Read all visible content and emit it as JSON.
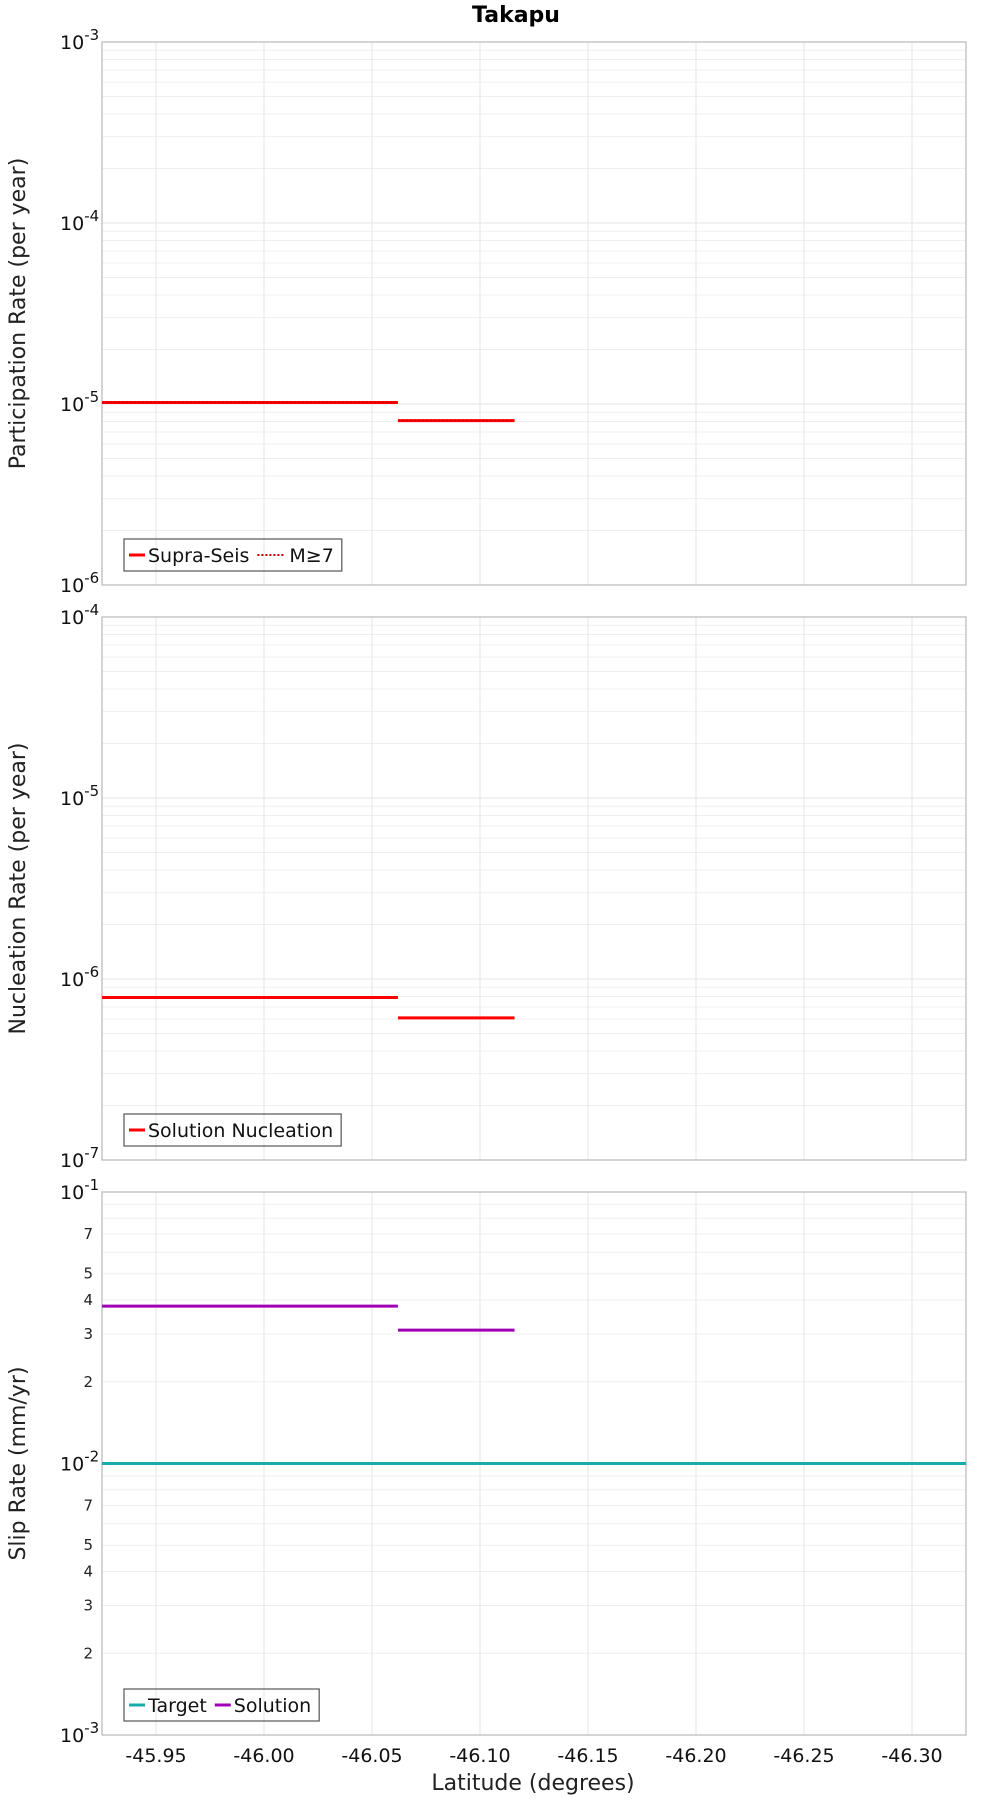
{
  "chart_data": {
    "type": "line",
    "title": "Takapu",
    "xlabel": "Latitude (degrees)",
    "xlim": [
      -45.925,
      -46.325
    ],
    "xticks": [
      -45.95,
      -46.0,
      -46.05,
      -46.1,
      -46.15,
      -46.2,
      -46.25,
      -46.3
    ],
    "xtick_labels": [
      "-45.95",
      "-46.00",
      "-46.05",
      "-46.10",
      "-46.15",
      "-46.20",
      "-46.25",
      "-46.30"
    ],
    "grid": true,
    "panels": [
      {
        "ylabel": "Participation Rate (per year)",
        "yscale": "log",
        "ylim": [
          1e-06,
          0.001
        ],
        "major_ticks": [
          {
            "base": "10",
            "exp": "-3"
          },
          {
            "base": "10",
            "exp": "-4"
          },
          {
            "base": "10",
            "exp": "-5"
          },
          {
            "base": "10",
            "exp": "-6"
          }
        ],
        "minor_labels": [],
        "legend_position": "bottom-left",
        "series": [
          {
            "name": "Supra-Seis",
            "color": "#ff0000",
            "style": "solid",
            "segments": [
              {
                "x": [
                  -45.925,
                  -46.062
                ],
                "y": 1.02e-05
              },
              {
                "x": [
                  -46.062,
                  -46.116
                ],
                "y": 8.1e-06
              }
            ]
          },
          {
            "name": "M≥7",
            "color": "#ff0000",
            "style": "dotted",
            "segments": [
              {
                "x": [
                  -45.925,
                  -46.062
                ],
                "y": 1.02e-05
              },
              {
                "x": [
                  -46.062,
                  -46.116
                ],
                "y": 8.1e-06
              }
            ]
          }
        ]
      },
      {
        "ylabel": "Nucleation Rate (per year)",
        "yscale": "log",
        "ylim": [
          1e-07,
          0.0001
        ],
        "major_ticks": [
          {
            "base": "10",
            "exp": "-4"
          },
          {
            "base": "10",
            "exp": "-5"
          },
          {
            "base": "10",
            "exp": "-6"
          },
          {
            "base": "10",
            "exp": "-7"
          }
        ],
        "minor_labels": [],
        "legend_position": "bottom-left",
        "series": [
          {
            "name": "Solution Nucleation",
            "color": "#ff0000",
            "style": "solid",
            "segments": [
              {
                "x": [
                  -45.925,
                  -46.062
                ],
                "y": 7.9e-07
              },
              {
                "x": [
                  -46.062,
                  -46.116
                ],
                "y": 6.1e-07
              }
            ]
          }
        ]
      },
      {
        "ylabel": "Slip Rate (mm/yr)",
        "yscale": "log",
        "ylim": [
          0.001,
          0.1
        ],
        "major_ticks": [
          {
            "base": "10",
            "exp": "-1"
          },
          {
            "base": "10",
            "exp": "-2"
          },
          {
            "base": "10",
            "exp": "-3"
          }
        ],
        "minor_labels": [
          {
            "value": 0.07,
            "label": "7"
          },
          {
            "value": 0.05,
            "label": "5"
          },
          {
            "value": 0.04,
            "label": "4"
          },
          {
            "value": 0.03,
            "label": "3"
          },
          {
            "value": 0.02,
            "label": "2"
          },
          {
            "value": 0.007,
            "label": "7"
          },
          {
            "value": 0.005,
            "label": "5"
          },
          {
            "value": 0.004,
            "label": "4"
          },
          {
            "value": 0.003,
            "label": "3"
          },
          {
            "value": 0.002,
            "label": "2"
          }
        ],
        "legend_position": "bottom-left",
        "series": [
          {
            "name": "Target",
            "color": "#1aacac",
            "style": "solid",
            "segments": [
              {
                "x": [
                  -45.925,
                  -46.325
                ],
                "y": 0.01
              }
            ]
          },
          {
            "name": "Solution",
            "color": "#a100b8",
            "style": "solid",
            "segments": [
              {
                "x": [
                  -45.925,
                  -46.062
                ],
                "y": 0.038
              },
              {
                "x": [
                  -46.062,
                  -46.116
                ],
                "y": 0.031
              }
            ]
          }
        ]
      }
    ]
  }
}
